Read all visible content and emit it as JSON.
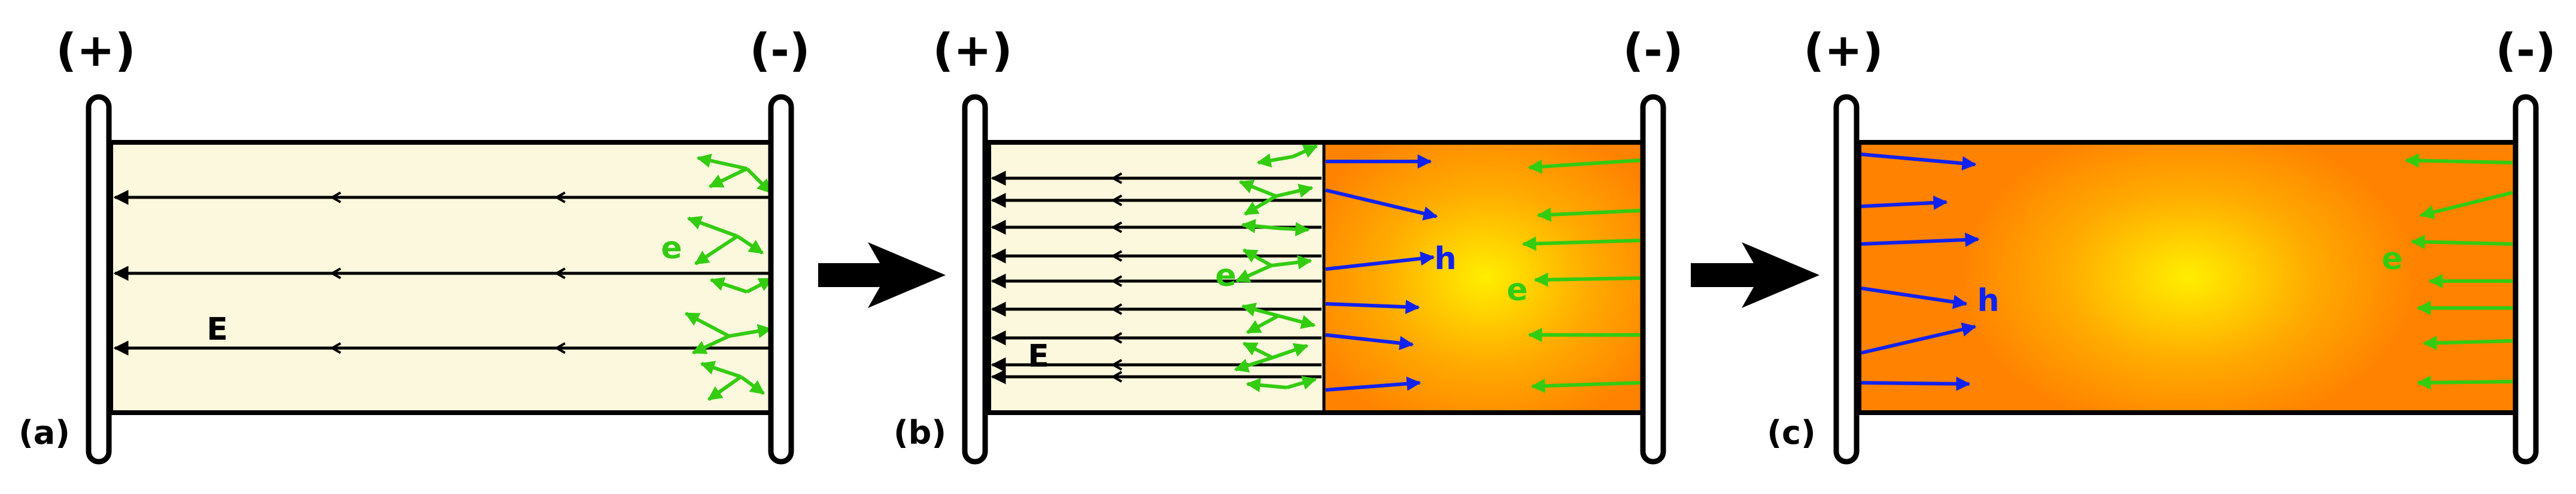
{
  "colors": {
    "background": "#ffffff",
    "tube_fill": "#fbf8dd",
    "plasma_core": "#ffee00",
    "plasma_edge": "#ff8800",
    "electron_arrow": "#33cc11",
    "hole_arrow": "#1122ee",
    "field_line": "#000000",
    "electrode_fill": "#ffffff",
    "transition_arrow": "#000000"
  },
  "panels": [
    {
      "id": "a",
      "panel_label": "(a)",
      "anode_label": "(+)",
      "cathode_label": "(-)",
      "field_label": "E",
      "electron_label": "e",
      "hole_label": ""
    },
    {
      "id": "b",
      "panel_label": "(b)",
      "anode_label": "(+)",
      "cathode_label": "(-)",
      "field_label": "E",
      "electron_label": "e",
      "hole_label": "h",
      "plasma_electron_label": "e"
    },
    {
      "id": "c",
      "panel_label": "(c)",
      "anode_label": "(+)",
      "cathode_label": "(-)",
      "field_label": "",
      "electron_label": "e",
      "hole_label": "h"
    }
  ],
  "transitions": [
    {
      "from": "a",
      "to": "b",
      "icon": "right-arrow-icon"
    },
    {
      "from": "b",
      "to": "c",
      "icon": "right-arrow-icon"
    }
  ]
}
